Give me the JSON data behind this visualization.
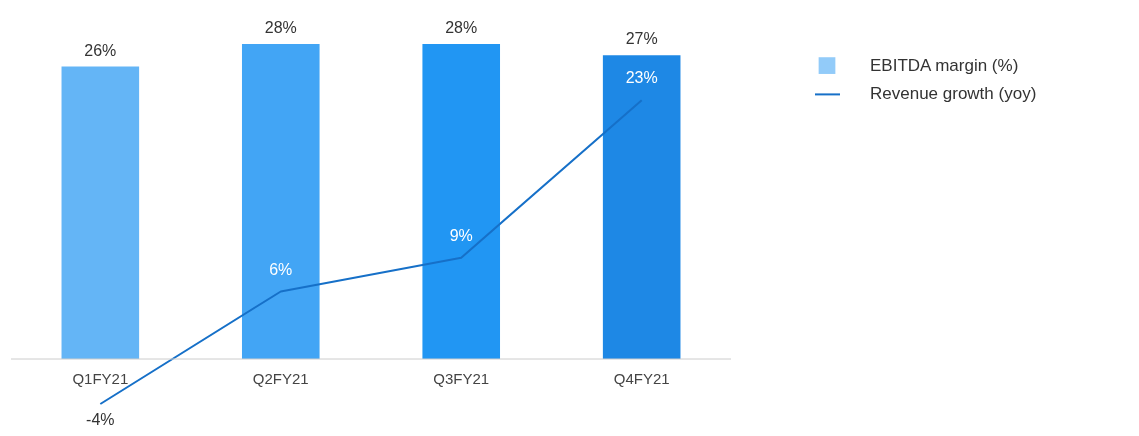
{
  "chart_data": {
    "type": "bar",
    "categories": [
      "Q1FY21",
      "Q2FY21",
      "Q3FY21",
      "Q4FY21"
    ],
    "series": [
      {
        "name": "EBITDA margin (%)",
        "color": "#64b5f6",
        "colors": [
          "#64b5f6",
          "#42a5f5",
          "#2196f3",
          "#1e88e5"
        ],
        "values": [
          26,
          28,
          28,
          27
        ],
        "value_labels": [
          "26%",
          "28%",
          "28%",
          "27%"
        ]
      },
      {
        "name": "Revenue growth (yoy)",
        "type": "line",
        "color": "#1670c8",
        "values": [
          -4,
          6,
          9,
          23
        ],
        "value_labels": [
          "-4%",
          "6%",
          "9%",
          "23%"
        ]
      }
    ],
    "legend": "right",
    "grid": false
  }
}
